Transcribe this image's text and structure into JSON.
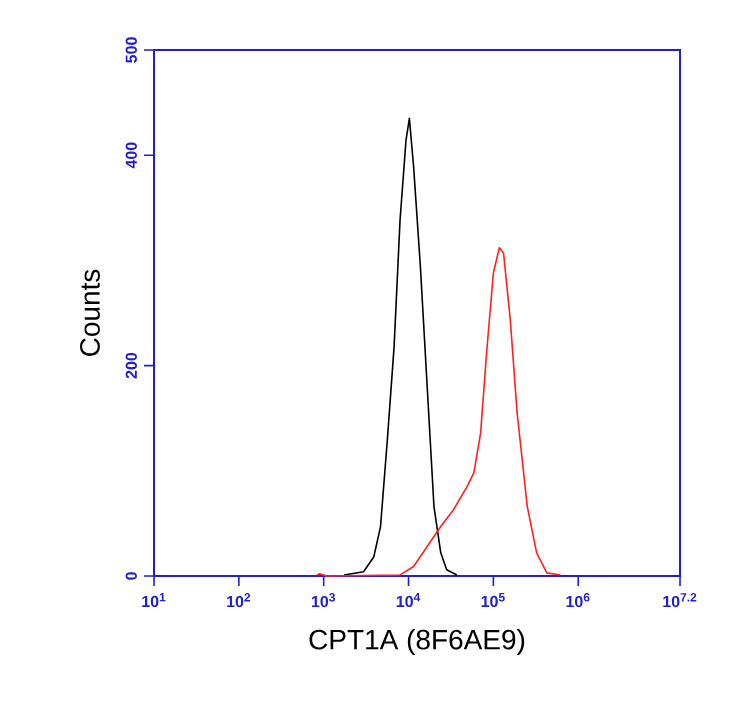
{
  "chart_data": {
    "type": "line",
    "xlabel": "CPT1A (8F6AE9)",
    "ylabel": "Counts",
    "log": "x",
    "xlim": [
      10,
      15848932
    ],
    "ylim": [
      0,
      500
    ],
    "xticks": [
      {
        "value": 10,
        "label": "10$^{1}$"
      },
      {
        "value": 100,
        "label": "10$^{2}$"
      },
      {
        "value": 1000,
        "label": "10$^{3}$"
      },
      {
        "value": 10000,
        "label": "10$^{4}$"
      },
      {
        "value": 100000,
        "label": "10$^{5}$"
      },
      {
        "value": 1000000,
        "label": "10$^{6}$"
      },
      {
        "value": 15848932,
        "label": "10$^{7.2}$"
      }
    ],
    "yticks": [
      0,
      200,
      400,
      500
    ],
    "grid": false,
    "marker": "none",
    "line_style": "solid",
    "series": [
      {
        "color": "#000000",
        "x": [
          1738,
          2951,
          3890,
          4677,
          5623,
          6761,
          7943,
          9333,
          10233,
          11482,
          13804,
          16596,
          19953,
          23988,
          28184,
          37154
        ],
        "values": [
          1,
          4,
          18,
          47,
          129,
          218,
          338,
          414,
          435,
          389,
          294,
          180,
          66,
          22,
          6,
          1
        ]
      },
      {
        "color": "#ff2020",
        "x": [
          832,
          891,
          1096,
          7943,
          11482,
          16596,
          23988,
          33884,
          48978,
          58884,
          70795,
          83176,
          100000,
          117490,
          131826,
          158489,
          190546,
          251189,
          323594,
          426580,
          616595
        ],
        "values": [
          1,
          2,
          0,
          1,
          9,
          28,
          47,
          63,
          85,
          98,
          136,
          212,
          288,
          312,
          307,
          243,
          155,
          66,
          22,
          3,
          1
        ]
      }
    ]
  }
}
